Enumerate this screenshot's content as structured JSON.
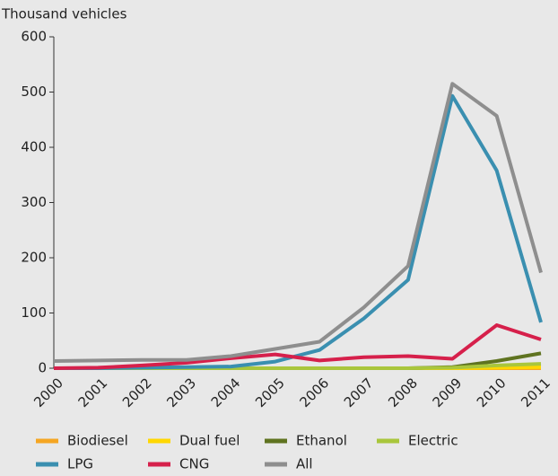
{
  "chart_data": {
    "type": "line",
    "y_label": "Thousand vehicles",
    "categories": [
      "2000",
      "2001",
      "2002",
      "2003",
      "2004",
      "2005",
      "2006",
      "2007",
      "2008",
      "2009",
      "2010",
      "2011"
    ],
    "ylim": [
      0,
      600
    ],
    "yticks": [
      0,
      100,
      200,
      300,
      400,
      500,
      600
    ],
    "series": [
      {
        "name": "Biodiesel",
        "color": "#f5a623",
        "values": [
          0,
          0,
          0,
          0,
          0,
          0,
          0,
          0,
          0,
          0,
          0,
          0
        ]
      },
      {
        "name": "Dual fuel",
        "color": "#ffd700",
        "values": [
          0,
          0,
          0,
          0,
          0,
          0,
          0,
          0,
          0,
          0,
          1,
          2
        ]
      },
      {
        "name": "Ethanol",
        "color": "#5f7320",
        "values": [
          0,
          0,
          0,
          0,
          0,
          0,
          0,
          0,
          0,
          2,
          13,
          27
        ]
      },
      {
        "name": "Electric",
        "color": "#a9c63c",
        "values": [
          0,
          0,
          0,
          0,
          0,
          0,
          0,
          0,
          0,
          1,
          5,
          8
        ]
      },
      {
        "name": "LPG",
        "color": "#3a8fb0",
        "values": [
          0,
          0,
          1,
          2,
          3,
          12,
          33,
          90,
          160,
          493,
          358,
          83
        ]
      },
      {
        "name": "CNG",
        "color": "#d6204b",
        "values": [
          0,
          1,
          5,
          10,
          18,
          25,
          14,
          20,
          22,
          17,
          78,
          52
        ]
      },
      {
        "name": "All",
        "color": "#8e8e8e",
        "values": [
          13,
          14,
          15,
          15,
          22,
          35,
          48,
          110,
          185,
          515,
          457,
          173
        ]
      }
    ]
  }
}
